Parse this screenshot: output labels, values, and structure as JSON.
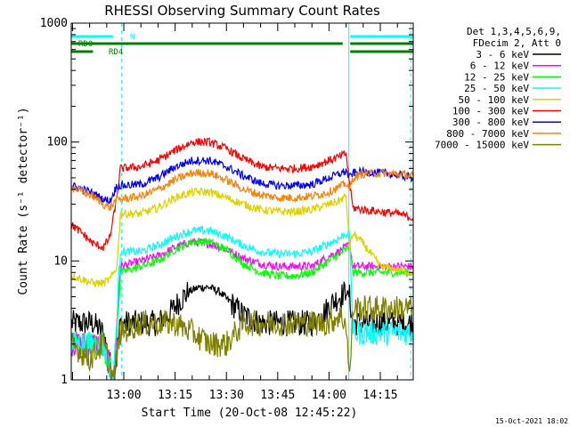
{
  "chart_data": {
    "type": "line",
    "title": "RHESSI Observing Summary Count Rates",
    "xlabel": "Start Time (20-Oct-08 12:45:22)",
    "ylabel": "Count Rate (s⁻¹ detector⁻¹)",
    "yscale": "log",
    "ylim": [
      1,
      1000
    ],
    "xlim_minutes": [
      -15.37,
      84.63
    ],
    "x_ticks": [
      {
        "label": "13:00",
        "minutes": 0
      },
      {
        "label": "13:15",
        "minutes": 15
      },
      {
        "label": "13:30",
        "minutes": 30
      },
      {
        "label": "13:45",
        "minutes": 45
      },
      {
        "label": "14:00",
        "minutes": 60
      },
      {
        "label": "14:15",
        "minutes": 75
      }
    ],
    "y_ticks": [
      {
        "label": "1",
        "value": 1
      },
      {
        "label": "10",
        "value": 10
      },
      {
        "label": "100",
        "value": 100
      },
      {
        "label": "1000",
        "value": 1000
      }
    ],
    "legend_header": [
      "Det 1,3,4,5,6,9,",
      "FDecim 2, Att 0"
    ],
    "legend_position": "right",
    "flags": [
      {
        "label": "N",
        "color": "#00ffff",
        "segments": [
          [
            -15.37,
            -3.2
          ],
          [
            66.2,
            84.63
          ]
        ]
      },
      {
        "label": "RD0",
        "color": "#008000",
        "segments": [
          [
            -15.37,
            64.0
          ],
          [
            66.2,
            84.63
          ]
        ]
      },
      {
        "label": "RD4",
        "color": "#008000",
        "segments": [
          [
            -15.37,
            -9.0
          ],
          [
            66.2,
            84.63
          ]
        ]
      }
    ],
    "night_boundaries_minutes": [
      -16,
      -0.7,
      65.8,
      83.9
    ],
    "series": [
      {
        "name": "3 - 6 keV",
        "color": "#000000",
        "points": [
          [
            -15.3,
            3
          ],
          [
            -9,
            3
          ],
          [
            -6,
            2.5
          ],
          [
            -3,
            1
          ],
          [
            -1,
            3
          ],
          [
            5,
            3
          ],
          [
            10,
            3
          ],
          [
            13,
            3.5
          ],
          [
            16,
            4.5
          ],
          [
            19,
            5.5
          ],
          [
            22,
            6
          ],
          [
            25,
            6
          ],
          [
            28,
            5.5
          ],
          [
            31,
            4.5
          ],
          [
            35,
            3.5
          ],
          [
            40,
            3
          ],
          [
            45,
            3
          ],
          [
            50,
            3
          ],
          [
            55,
            3
          ],
          [
            58,
            3.5
          ],
          [
            61,
            4.5
          ],
          [
            63,
            5
          ],
          [
            65,
            5.5
          ],
          [
            66,
            5
          ],
          [
            67,
            3
          ],
          [
            72,
            3
          ],
          [
            78,
            3
          ],
          [
            84.5,
            3
          ]
        ]
      },
      {
        "name": "6 - 12 keV",
        "color": "#ff00ff",
        "points": [
          [
            -15.3,
            2
          ],
          [
            -6,
            2
          ],
          [
            -3,
            1
          ],
          [
            -1,
            9
          ],
          [
            5,
            10
          ],
          [
            10,
            11
          ],
          [
            15,
            13
          ],
          [
            20,
            14.5
          ],
          [
            25,
            14
          ],
          [
            30,
            12.5
          ],
          [
            35,
            10.5
          ],
          [
            40,
            9.5
          ],
          [
            45,
            9
          ],
          [
            50,
            9
          ],
          [
            55,
            9
          ],
          [
            60,
            11
          ],
          [
            63,
            12
          ],
          [
            65,
            13
          ],
          [
            66,
            14
          ],
          [
            67,
            9
          ],
          [
            70,
            9
          ],
          [
            75,
            9
          ],
          [
            84.5,
            9
          ]
        ]
      },
      {
        "name": "12 - 25 keV",
        "color": "#00ff00",
        "points": [
          [
            -15.3,
            2
          ],
          [
            -6,
            2
          ],
          [
            -3,
            1
          ],
          [
            -1,
            8
          ],
          [
            5,
            9
          ],
          [
            10,
            10
          ],
          [
            15,
            12.5
          ],
          [
            20,
            14.5
          ],
          [
            25,
            14.5
          ],
          [
            30,
            12.5
          ],
          [
            35,
            9.5
          ],
          [
            40,
            8
          ],
          [
            45,
            7.5
          ],
          [
            50,
            7.5
          ],
          [
            55,
            8
          ],
          [
            60,
            10
          ],
          [
            63,
            11.5
          ],
          [
            65,
            12.5
          ],
          [
            66,
            13
          ],
          [
            67,
            8
          ],
          [
            70,
            8
          ],
          [
            75,
            8
          ],
          [
            84.5,
            8
          ]
        ]
      },
      {
        "name": "25 - 50 keV",
        "color": "#00ffff",
        "points": [
          [
            -15.3,
            2
          ],
          [
            -6,
            2
          ],
          [
            -3,
            1
          ],
          [
            -1,
            12
          ],
          [
            5,
            12
          ],
          [
            10,
            13.5
          ],
          [
            15,
            16
          ],
          [
            20,
            18
          ],
          [
            25,
            18
          ],
          [
            30,
            16
          ],
          [
            35,
            13.5
          ],
          [
            40,
            12
          ],
          [
            45,
            11.5
          ],
          [
            50,
            11.5
          ],
          [
            55,
            12
          ],
          [
            60,
            14
          ],
          [
            63,
            15.5
          ],
          [
            65,
            17
          ],
          [
            66,
            17
          ],
          [
            67,
            2.5
          ],
          [
            72,
            2.5
          ],
          [
            78,
            2.5
          ],
          [
            84.5,
            2.5
          ]
        ]
      },
      {
        "name": "50 - 100 keV",
        "color": "#e0d000",
        "points": [
          [
            -15.3,
            7.5
          ],
          [
            -12,
            7
          ],
          [
            -9,
            6.5
          ],
          [
            -6,
            6.5
          ],
          [
            -4,
            7
          ],
          [
            -2,
            9
          ],
          [
            -1,
            25
          ],
          [
            5,
            25
          ],
          [
            10,
            28
          ],
          [
            15,
            34
          ],
          [
            20,
            38
          ],
          [
            25,
            38
          ],
          [
            30,
            34
          ],
          [
            35,
            30
          ],
          [
            40,
            27
          ],
          [
            45,
            26
          ],
          [
            50,
            26
          ],
          [
            55,
            27
          ],
          [
            60,
            30
          ],
          [
            63,
            32
          ],
          [
            65,
            35
          ],
          [
            66,
            13
          ],
          [
            67,
            17
          ],
          [
            70,
            14
          ],
          [
            75,
            9
          ],
          [
            80,
            8.5
          ],
          [
            84.5,
            8
          ]
        ]
      },
      {
        "name": "100 - 300 keV",
        "color": "#ff0000",
        "points": [
          [
            -15.3,
            20
          ],
          [
            -12,
            17
          ],
          [
            -9,
            14
          ],
          [
            -6,
            13
          ],
          [
            -4,
            16
          ],
          [
            -2,
            35
          ],
          [
            -1,
            60
          ],
          [
            5,
            62
          ],
          [
            10,
            70
          ],
          [
            15,
            85
          ],
          [
            20,
            100
          ],
          [
            25,
            100
          ],
          [
            30,
            88
          ],
          [
            35,
            72
          ],
          [
            40,
            62
          ],
          [
            45,
            60
          ],
          [
            50,
            60
          ],
          [
            55,
            62
          ],
          [
            60,
            70
          ],
          [
            63,
            75
          ],
          [
            65,
            80
          ],
          [
            66,
            45
          ],
          [
            67,
            28
          ],
          [
            70,
            27
          ],
          [
            75,
            26
          ],
          [
            80,
            25
          ],
          [
            84.5,
            23
          ]
        ]
      },
      {
        "name": "300 - 800 keV",
        "color": "#0000ff",
        "points": [
          [
            -15.3,
            43
          ],
          [
            -12,
            40
          ],
          [
            -9,
            37
          ],
          [
            -6,
            33
          ],
          [
            -4,
            32
          ],
          [
            -2,
            43
          ],
          [
            -1,
            43
          ],
          [
            5,
            44
          ],
          [
            10,
            50
          ],
          [
            15,
            62
          ],
          [
            20,
            70
          ],
          [
            25,
            70
          ],
          [
            30,
            62
          ],
          [
            35,
            52
          ],
          [
            40,
            45
          ],
          [
            45,
            43
          ],
          [
            50,
            43
          ],
          [
            55,
            44
          ],
          [
            60,
            50
          ],
          [
            63,
            54
          ],
          [
            65,
            57
          ],
          [
            66,
            50
          ],
          [
            67,
            55
          ],
          [
            70,
            56
          ],
          [
            75,
            55
          ],
          [
            80,
            53
          ],
          [
            84.5,
            50
          ]
        ]
      },
      {
        "name": "800 - 7000 keV",
        "color": "#ff8000",
        "points": [
          [
            -15.3,
            42
          ],
          [
            -12,
            38
          ],
          [
            -9,
            35
          ],
          [
            -6,
            30
          ],
          [
            -4,
            28
          ],
          [
            -2,
            33
          ],
          [
            -1,
            33
          ],
          [
            5,
            35
          ],
          [
            10,
            40
          ],
          [
            15,
            48
          ],
          [
            20,
            55
          ],
          [
            25,
            55
          ],
          [
            30,
            48
          ],
          [
            35,
            40
          ],
          [
            40,
            36
          ],
          [
            45,
            34
          ],
          [
            50,
            34
          ],
          [
            55,
            35
          ],
          [
            60,
            38
          ],
          [
            63,
            42
          ],
          [
            65,
            45
          ],
          [
            66,
            40
          ],
          [
            67,
            50
          ],
          [
            70,
            54
          ],
          [
            75,
            55
          ],
          [
            80,
            54
          ],
          [
            84.5,
            52
          ]
        ]
      },
      {
        "name": "7000 - 15000 keV",
        "color": "#808000",
        "points": [
          [
            -15.3,
            2
          ],
          [
            -10,
            1.5
          ],
          [
            -6,
            2
          ],
          [
            -3,
            1
          ],
          [
            -1,
            2.5
          ],
          [
            5,
            3
          ],
          [
            10,
            3
          ],
          [
            15,
            3
          ],
          [
            20,
            2.5
          ],
          [
            25,
            2
          ],
          [
            30,
            2
          ],
          [
            35,
            3
          ],
          [
            40,
            3
          ],
          [
            45,
            3
          ],
          [
            50,
            3
          ],
          [
            55,
            3
          ],
          [
            60,
            3
          ],
          [
            63,
            3.5
          ],
          [
            65,
            3
          ],
          [
            66,
            1
          ],
          [
            67,
            4
          ],
          [
            70,
            4
          ],
          [
            75,
            4
          ],
          [
            80,
            4
          ],
          [
            84.5,
            4
          ]
        ]
      }
    ],
    "footer_date": "15-Oct-2021 18:02"
  }
}
